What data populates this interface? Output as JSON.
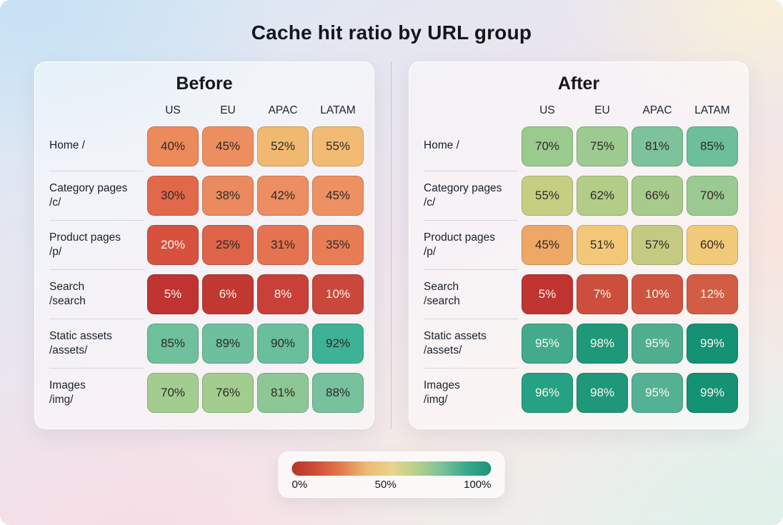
{
  "title": "Cache hit ratio by URL group",
  "chart_data": {
    "type": "heatmap",
    "title": "Cache hit ratio by URL group",
    "unit": "%",
    "columns": [
      "US",
      "EU",
      "APAC",
      "LATAM"
    ],
    "rows": [
      {
        "label": "Home /",
        "path": ""
      },
      {
        "label": "Category pages",
        "path": "/c/"
      },
      {
        "label": "Product pages",
        "path": "/p/"
      },
      {
        "label": "Search",
        "path": "/search"
      },
      {
        "label": "Static assets",
        "path": "/assets/"
      },
      {
        "label": "Images",
        "path": "/img/"
      }
    ],
    "panels": [
      {
        "name": "Before",
        "values": [
          [
            40,
            45,
            52,
            55
          ],
          [
            30,
            38,
            42,
            45
          ],
          [
            20,
            25,
            31,
            35
          ],
          [
            5,
            6,
            8,
            10
          ],
          [
            85,
            89,
            90,
            92
          ],
          [
            70,
            76,
            81,
            88
          ]
        ],
        "cell_colors": [
          [
            "#ec8a5c",
            "#ec8e60",
            "#f0b870",
            "#f1bb73"
          ],
          [
            "#e2684a",
            "#eb8a5f",
            "#ec8e61",
            "#ed9163"
          ],
          [
            "#d6523f",
            "#dd6448",
            "#e57250",
            "#e87d55"
          ],
          [
            "#bf3331",
            "#c23833",
            "#c84038",
            "#ca473c"
          ],
          [
            "#6fc09c",
            "#6dbf9d",
            "#69be9c",
            "#3eb295"
          ],
          [
            "#a3cd90",
            "#a3cd8f",
            "#8cc795",
            "#77c19e"
          ]
        ]
      },
      {
        "name": "After",
        "values": [
          [
            70,
            75,
            81,
            85
          ],
          [
            55,
            62,
            66,
            70
          ],
          [
            45,
            51,
            57,
            60
          ],
          [
            5,
            7,
            10,
            12
          ],
          [
            95,
            98,
            95,
            99
          ],
          [
            96,
            98,
            95,
            99
          ]
        ],
        "cell_colors": [
          [
            "#9bca8f",
            "#9cca90",
            "#7dc29a",
            "#6dbf9b"
          ],
          [
            "#c5cf82",
            "#b3cd88",
            "#a6cb8d",
            "#9aca92"
          ],
          [
            "#eda866",
            "#f2c878",
            "#c5ca82",
            "#f2c979"
          ],
          [
            "#bf3431",
            "#cc4e3c",
            "#ce5340",
            "#d35c45"
          ],
          [
            "#44aa8c",
            "#1e9878",
            "#4fae90",
            "#159173"
          ],
          [
            "#27a183",
            "#1e9878",
            "#55b194",
            "#159173"
          ]
        ]
      }
    ],
    "scale": {
      "min": 0,
      "max": 100,
      "tick_labels": [
        "0%",
        "50%",
        "100%"
      ],
      "gradient": [
        "#b5342c",
        "#cf4f37",
        "#e27d50",
        "#edba75",
        "#e9d48e",
        "#b8d08c",
        "#7cc29a",
        "#3aa98c",
        "#1d9377"
      ]
    },
    "text_colors": {
      "light": "#fdf6ec",
      "dark": "#2e2a24",
      "light_when": "value <= 20 or value >= 95"
    }
  }
}
